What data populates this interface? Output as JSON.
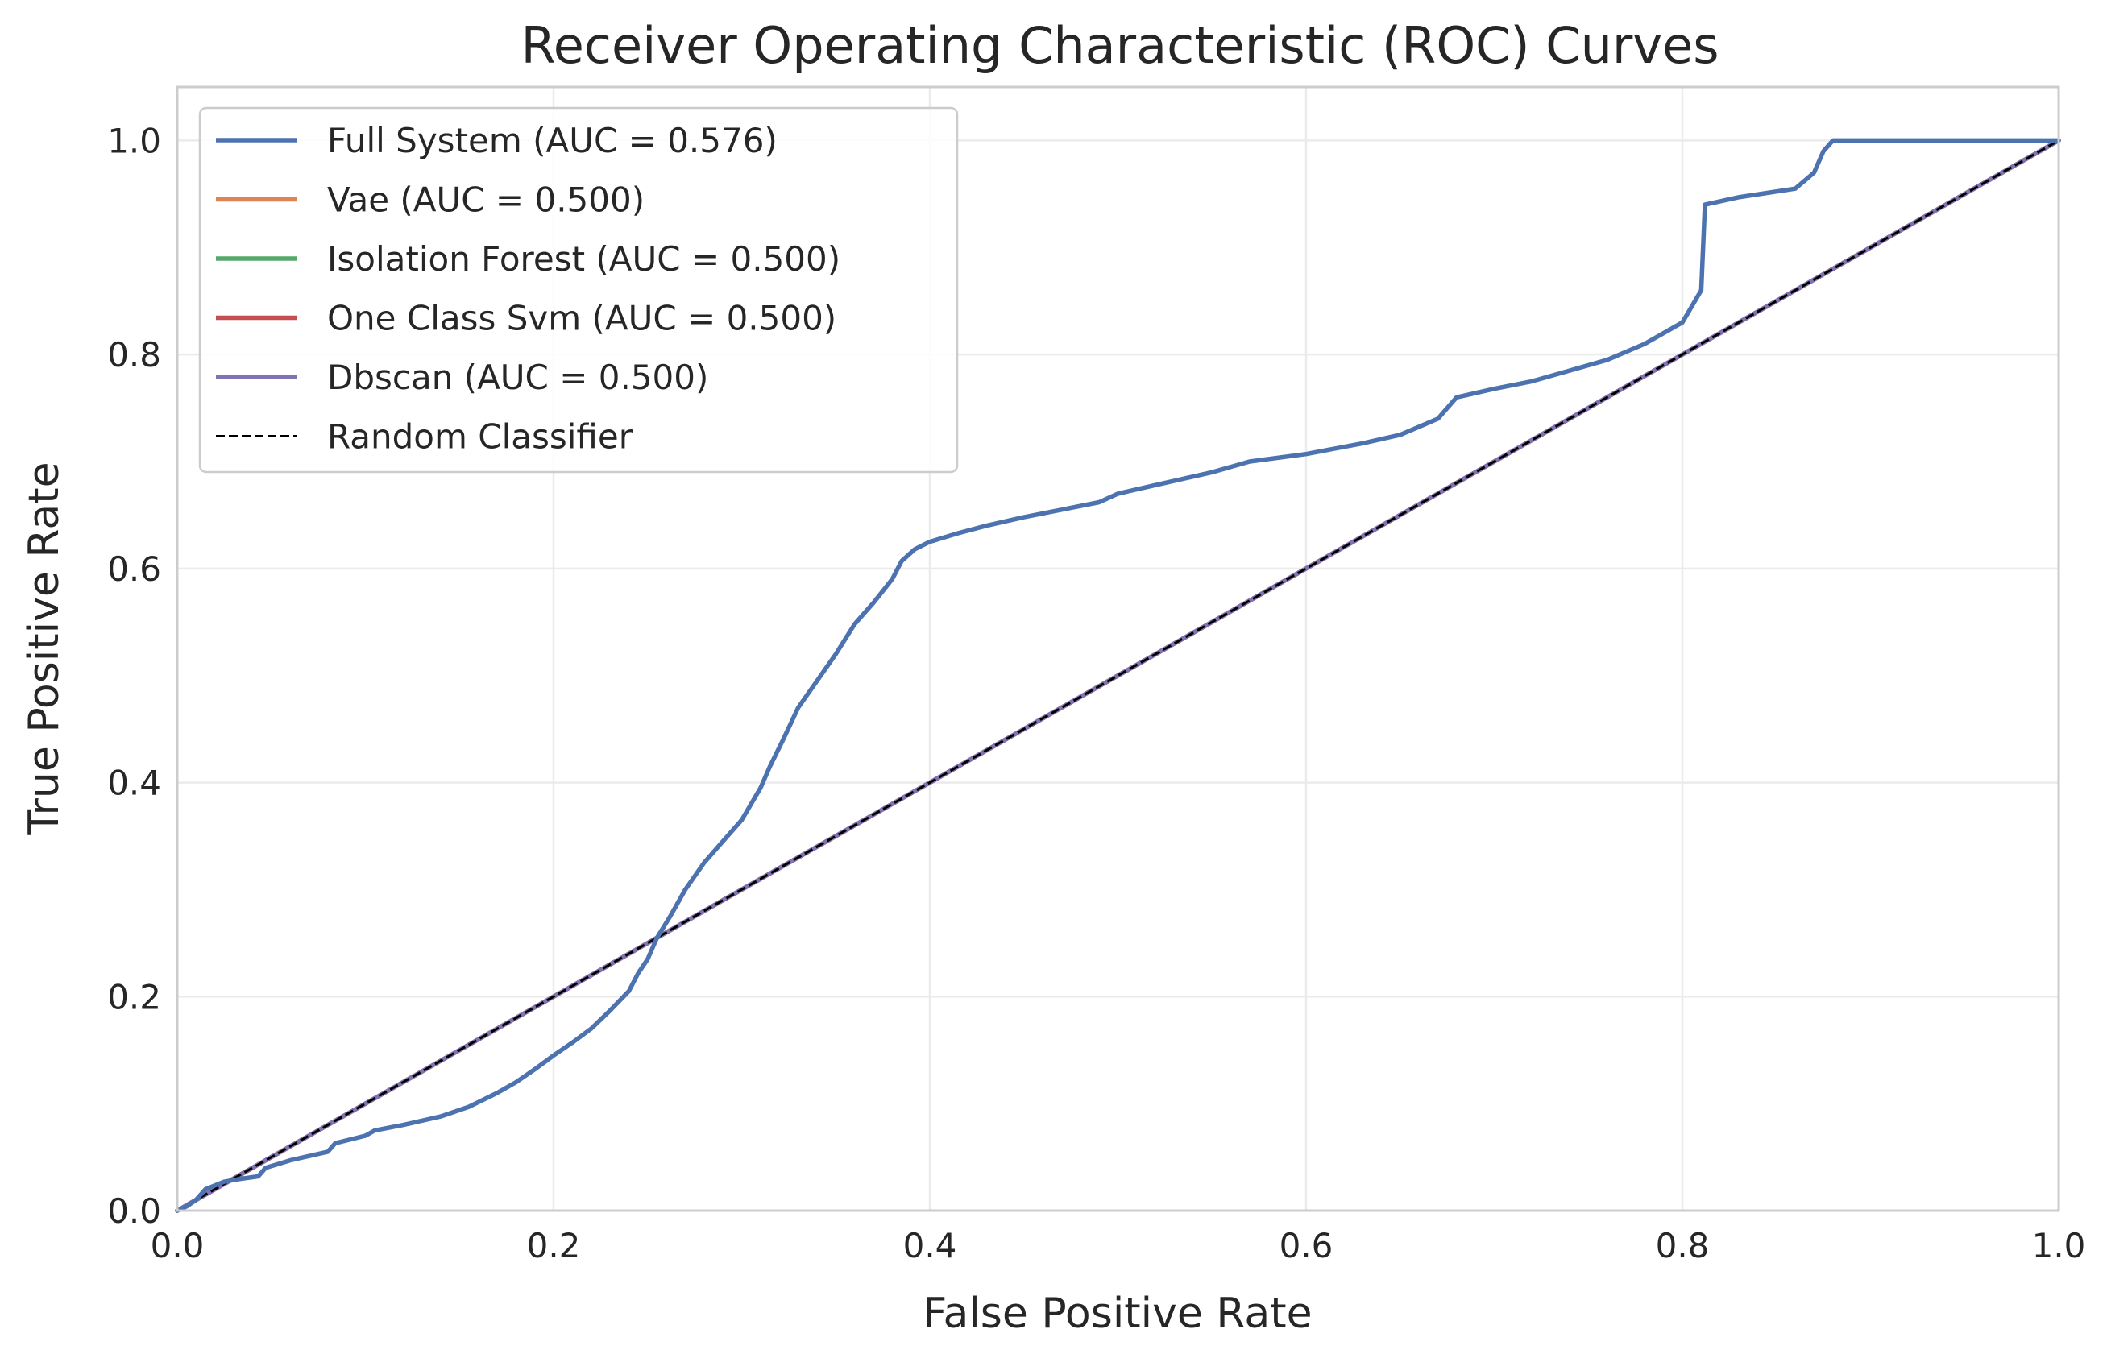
{
  "chart_data": {
    "type": "line",
    "title": "Receiver Operating Characteristic (ROC) Curves",
    "xlabel": "False Positive Rate",
    "ylabel": "True Positive Rate",
    "xlim": [
      0.0,
      1.0
    ],
    "ylim": [
      0.0,
      1.05
    ],
    "xticks": [
      "0.0",
      "0.2",
      "0.4",
      "0.6",
      "0.8",
      "1.0"
    ],
    "yticks": [
      "0.0",
      "0.2",
      "0.4",
      "0.6",
      "0.8",
      "1.0"
    ],
    "grid": true,
    "legend_position": "top-left",
    "series": [
      {
        "name": "Full System (AUC = 0.576)",
        "color": "#4c72b0",
        "style": "solid",
        "points": [
          [
            0.0,
            0.0
          ],
          [
            0.005,
            0.004
          ],
          [
            0.01,
            0.01
          ],
          [
            0.015,
            0.02
          ],
          [
            0.025,
            0.027
          ],
          [
            0.035,
            0.03
          ],
          [
            0.043,
            0.032
          ],
          [
            0.047,
            0.04
          ],
          [
            0.06,
            0.047
          ],
          [
            0.08,
            0.055
          ],
          [
            0.084,
            0.063
          ],
          [
            0.1,
            0.07
          ],
          [
            0.105,
            0.075
          ],
          [
            0.12,
            0.08
          ],
          [
            0.14,
            0.088
          ],
          [
            0.155,
            0.097
          ],
          [
            0.17,
            0.11
          ],
          [
            0.18,
            0.12
          ],
          [
            0.19,
            0.132
          ],
          [
            0.2,
            0.145
          ],
          [
            0.21,
            0.157
          ],
          [
            0.22,
            0.17
          ],
          [
            0.23,
            0.187
          ],
          [
            0.24,
            0.205
          ],
          [
            0.245,
            0.222
          ],
          [
            0.25,
            0.235
          ],
          [
            0.255,
            0.255
          ],
          [
            0.262,
            0.275
          ],
          [
            0.27,
            0.3
          ],
          [
            0.28,
            0.325
          ],
          [
            0.29,
            0.345
          ],
          [
            0.3,
            0.365
          ],
          [
            0.31,
            0.395
          ],
          [
            0.315,
            0.415
          ],
          [
            0.322,
            0.44
          ],
          [
            0.33,
            0.47
          ],
          [
            0.34,
            0.495
          ],
          [
            0.35,
            0.52
          ],
          [
            0.36,
            0.548
          ],
          [
            0.37,
            0.568
          ],
          [
            0.38,
            0.59
          ],
          [
            0.385,
            0.607
          ],
          [
            0.392,
            0.618
          ],
          [
            0.4,
            0.625
          ],
          [
            0.415,
            0.633
          ],
          [
            0.43,
            0.64
          ],
          [
            0.45,
            0.648
          ],
          [
            0.47,
            0.655
          ],
          [
            0.49,
            0.662
          ],
          [
            0.5,
            0.67
          ],
          [
            0.52,
            0.678
          ],
          [
            0.55,
            0.69
          ],
          [
            0.57,
            0.7
          ],
          [
            0.6,
            0.707
          ],
          [
            0.63,
            0.717
          ],
          [
            0.65,
            0.725
          ],
          [
            0.67,
            0.74
          ],
          [
            0.68,
            0.76
          ],
          [
            0.7,
            0.768
          ],
          [
            0.72,
            0.775
          ],
          [
            0.74,
            0.785
          ],
          [
            0.76,
            0.795
          ],
          [
            0.78,
            0.81
          ],
          [
            0.8,
            0.83
          ],
          [
            0.805,
            0.845
          ],
          [
            0.81,
            0.86
          ],
          [
            0.812,
            0.94
          ],
          [
            0.83,
            0.947
          ],
          [
            0.86,
            0.955
          ],
          [
            0.87,
            0.97
          ],
          [
            0.875,
            0.99
          ],
          [
            0.88,
            1.0
          ],
          [
            1.0,
            1.0
          ]
        ]
      },
      {
        "name": "Vae (AUC = 0.500)",
        "color": "#dd8452",
        "style": "solid",
        "points": [
          [
            0.0,
            0.0
          ],
          [
            1.0,
            1.0
          ]
        ]
      },
      {
        "name": "Isolation Forest (AUC = 0.500)",
        "color": "#55a868",
        "style": "solid",
        "points": [
          [
            0.0,
            0.0
          ],
          [
            1.0,
            1.0
          ]
        ]
      },
      {
        "name": "One Class Svm (AUC = 0.500)",
        "color": "#c44e52",
        "style": "solid",
        "points": [
          [
            0.0,
            0.0
          ],
          [
            1.0,
            1.0
          ]
        ]
      },
      {
        "name": "Dbscan (AUC = 0.500)",
        "color": "#8172b3",
        "style": "solid",
        "points": [
          [
            0.0,
            0.0
          ],
          [
            1.0,
            1.0
          ]
        ]
      },
      {
        "name": "Random Classifier",
        "color": "#000000",
        "style": "dashed",
        "points": [
          [
            0.0,
            0.0
          ],
          [
            1.0,
            1.0
          ]
        ]
      }
    ]
  }
}
